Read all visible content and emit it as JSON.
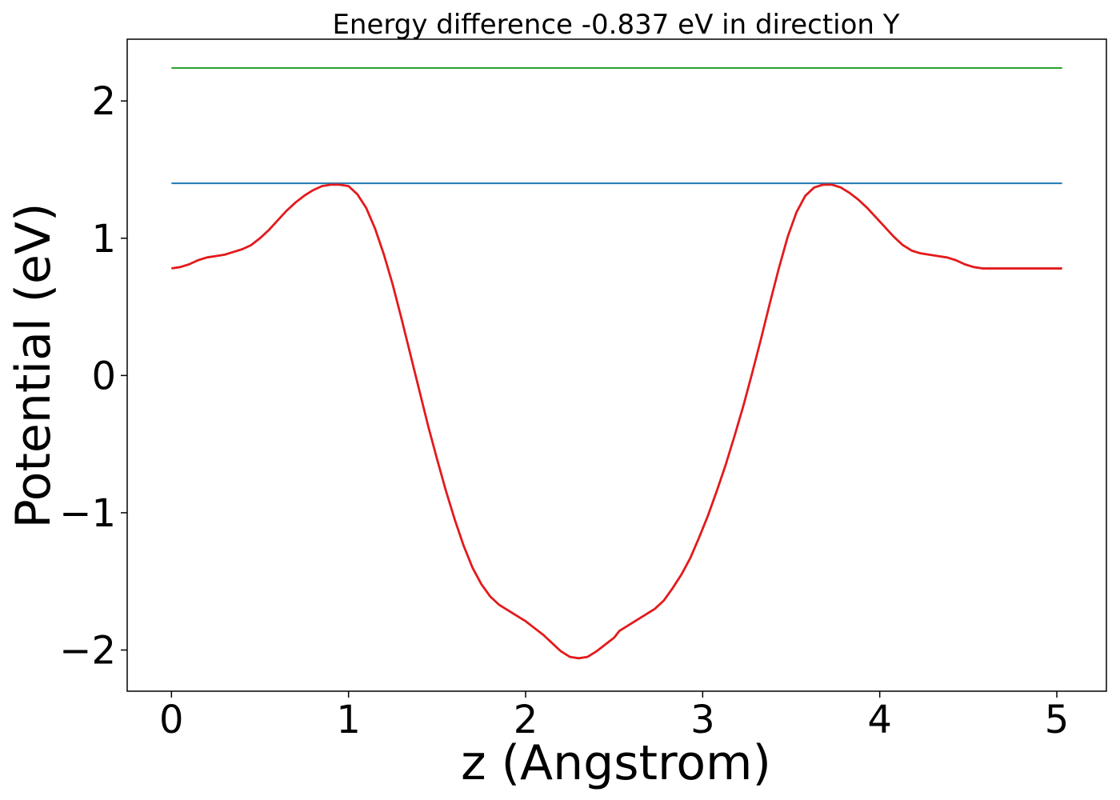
{
  "chart_data": {
    "type": "line",
    "title": "Energy difference -0.837 eV in direction Y",
    "xlabel": "z (Angstrom)",
    "ylabel": "Potential (eV)",
    "xlim": [
      -0.25,
      5.28
    ],
    "ylim": [
      -2.3,
      2.45
    ],
    "xticks": [
      0,
      1,
      2,
      3,
      4,
      5
    ],
    "xtick_labels": [
      "0",
      "1",
      "2",
      "3",
      "4",
      "5"
    ],
    "yticks": [
      -2,
      -1,
      0,
      1,
      2
    ],
    "ytick_labels": [
      "−2",
      "−1",
      "0",
      "1",
      "2"
    ],
    "grid": false,
    "series": [
      {
        "color": "#2ca02c",
        "x": [
          0,
          5.03
        ],
        "y": [
          2.24,
          2.24
        ]
      },
      {
        "color": "#1f77b4",
        "x": [
          0,
          5.03
        ],
        "y": [
          1.4,
          1.4
        ]
      },
      {
        "color": "#e31a1c",
        "x": [
          0.0,
          0.05,
          0.1,
          0.15,
          0.2,
          0.25,
          0.3,
          0.35,
          0.4,
          0.45,
          0.5,
          0.55,
          0.6,
          0.65,
          0.7,
          0.75,
          0.8,
          0.85,
          0.9,
          0.95,
          1.0,
          1.05,
          1.1,
          1.15,
          1.2,
          1.25,
          1.3,
          1.35,
          1.4,
          1.45,
          1.5,
          1.55,
          1.6,
          1.65,
          1.7,
          1.75,
          1.8,
          1.85,
          1.9,
          1.95,
          2.0,
          2.05,
          2.1,
          2.15,
          2.2,
          2.25,
          2.3,
          2.35,
          2.4,
          2.45,
          2.5,
          2.53,
          2.58,
          2.63,
          2.68,
          2.73,
          2.78,
          2.83,
          2.88,
          2.93,
          2.98,
          3.03,
          3.08,
          3.13,
          3.18,
          3.23,
          3.28,
          3.33,
          3.38,
          3.43,
          3.48,
          3.53,
          3.58,
          3.63,
          3.68,
          3.73,
          3.78,
          3.83,
          3.88,
          3.93,
          3.98,
          4.03,
          4.08,
          4.13,
          4.18,
          4.23,
          4.28,
          4.33,
          4.38,
          4.43,
          4.48,
          4.53,
          4.58,
          4.63,
          4.68,
          4.73,
          4.78,
          4.83,
          4.88,
          4.93,
          4.98,
          5.03
        ],
        "y": [
          0.78,
          0.79,
          0.81,
          0.84,
          0.86,
          0.87,
          0.88,
          0.9,
          0.92,
          0.95,
          1.0,
          1.06,
          1.13,
          1.2,
          1.26,
          1.31,
          1.35,
          1.38,
          1.39,
          1.39,
          1.38,
          1.32,
          1.22,
          1.07,
          0.88,
          0.66,
          0.41,
          0.15,
          -0.11,
          -0.37,
          -0.61,
          -0.84,
          -1.05,
          -1.24,
          -1.4,
          -1.52,
          -1.61,
          -1.67,
          -1.71,
          -1.75,
          -1.79,
          -1.84,
          -1.89,
          -1.95,
          -2.01,
          -2.05,
          -2.06,
          -2.05,
          -2.01,
          -1.96,
          -1.91,
          -1.86,
          -1.82,
          -1.78,
          -1.74,
          -1.7,
          -1.64,
          -1.55,
          -1.45,
          -1.33,
          -1.18,
          -1.02,
          -0.84,
          -0.65,
          -0.44,
          -0.22,
          0.02,
          0.27,
          0.53,
          0.78,
          1.01,
          1.19,
          1.31,
          1.37,
          1.39,
          1.39,
          1.37,
          1.33,
          1.28,
          1.22,
          1.15,
          1.08,
          1.01,
          0.95,
          0.91,
          0.89,
          0.88,
          0.87,
          0.86,
          0.84,
          0.81,
          0.79,
          0.78,
          0.78,
          0.78,
          0.78,
          0.78,
          0.78,
          0.78,
          0.78,
          0.78,
          0.78
        ]
      }
    ]
  }
}
